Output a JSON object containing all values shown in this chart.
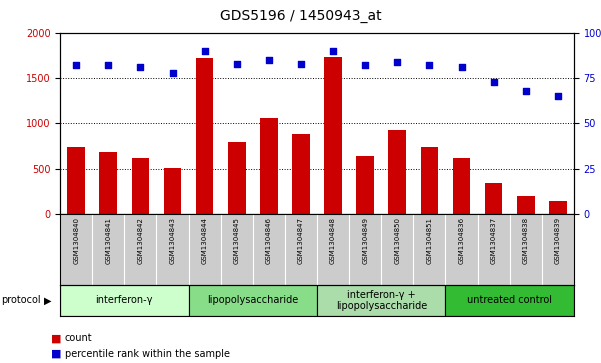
{
  "title": "GDS5196 / 1450943_at",
  "samples": [
    "GSM1304840",
    "GSM1304841",
    "GSM1304842",
    "GSM1304843",
    "GSM1304844",
    "GSM1304845",
    "GSM1304846",
    "GSM1304847",
    "GSM1304848",
    "GSM1304849",
    "GSM1304850",
    "GSM1304851",
    "GSM1304836",
    "GSM1304837",
    "GSM1304838",
    "GSM1304839"
  ],
  "counts": [
    740,
    690,
    620,
    510,
    1720,
    800,
    1060,
    880,
    1730,
    640,
    930,
    740,
    620,
    340,
    200,
    150
  ],
  "percentile_ranks": [
    82,
    82,
    81,
    78,
    90,
    83,
    85,
    83,
    90,
    82,
    84,
    82,
    81,
    73,
    68,
    65
  ],
  "groups": [
    {
      "label": "interferon-γ",
      "start": 0,
      "end": 4,
      "color": "#ccffcc"
    },
    {
      "label": "lipopolysaccharide",
      "start": 4,
      "end": 8,
      "color": "#88dd88"
    },
    {
      "label": "interferon-γ +\nlipopolysaccharide",
      "start": 8,
      "end": 12,
      "color": "#aaddaa"
    },
    {
      "label": "untreated control",
      "start": 12,
      "end": 16,
      "color": "#33bb33"
    }
  ],
  "ylim_left": [
    0,
    2000
  ],
  "ylim_right": [
    0,
    100
  ],
  "bar_color": "#cc0000",
  "dot_color": "#0000cc",
  "cell_color": "#cccccc",
  "cell_border": "#999999",
  "title_fontsize": 10,
  "tick_fontsize": 7,
  "sample_fontsize": 5,
  "group_fontsize": 7,
  "legend_fontsize": 7
}
